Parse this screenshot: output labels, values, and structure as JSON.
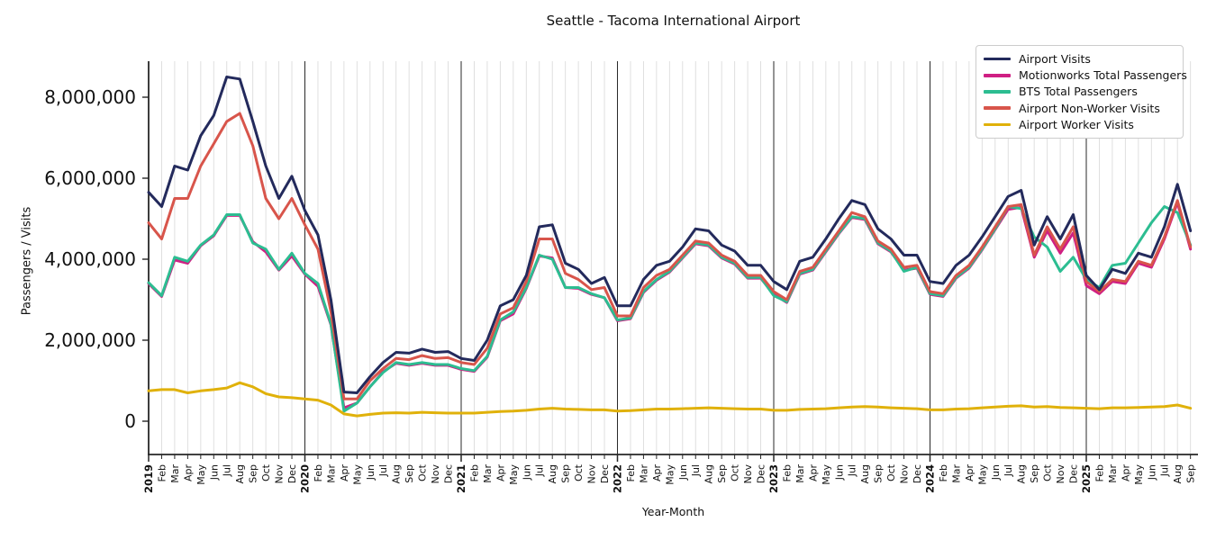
{
  "title": "Seattle - Tacoma International Airport",
  "xlabel": "Year-Month",
  "ylabel": "Passengers / Visits",
  "legend": {
    "items": [
      {
        "label": "Airport Visits"
      },
      {
        "label": "Motionworks Total Passengers"
      },
      {
        "label": "BTS Total Passengers"
      },
      {
        "label": "Airport Non-Worker Visits"
      },
      {
        "label": "Airport Worker Visits"
      }
    ]
  },
  "chart_data": {
    "type": "line",
    "title": "Seattle - Tacoma International Airport",
    "xlabel": "Year-Month",
    "ylabel": "Passengers / Visits",
    "x_start": "2019-01",
    "x_end": "2025-09",
    "n_points": 81,
    "grid": "vertical-monthly",
    "legend_position": "upper right",
    "ylim": [
      -820000,
      9000000
    ],
    "yticks": [
      0,
      2000000,
      4000000,
      6000000,
      8000000
    ],
    "ytick_labels": [
      "0",
      "2,000,000",
      "4,000,000",
      "6,000,000",
      "8,000,000"
    ],
    "year_line_indices": [
      12,
      24,
      36,
      48,
      60,
      72
    ],
    "x_tick_labels": [
      "2019",
      "Feb",
      "Mar",
      "Apr",
      "May",
      "Jun",
      "Jul",
      "Aug",
      "Sep",
      "Oct",
      "Nov",
      "Dec",
      "2020",
      "Feb",
      "Mar",
      "Apr",
      "May",
      "Jun",
      "Jul",
      "Aug",
      "Sep",
      "Oct",
      "Nov",
      "Dec",
      "2021",
      "Feb",
      "Mar",
      "Apr",
      "May",
      "Jun",
      "Jul",
      "Aug",
      "Sep",
      "Oct",
      "Nov",
      "Dec",
      "2022",
      "Feb",
      "Mar",
      "Apr",
      "May",
      "Jun",
      "Jul",
      "Aug",
      "Sep",
      "Oct",
      "Nov",
      "Dec",
      "2023",
      "Feb",
      "Mar",
      "Apr",
      "May",
      "Jun",
      "Jul",
      "Aug",
      "Sep",
      "Oct",
      "Nov",
      "Dec",
      "2024",
      "Feb",
      "Mar",
      "Apr",
      "May",
      "Jun",
      "Jul",
      "Aug",
      "Sep",
      "Oct",
      "Nov",
      "Dec",
      "2025",
      "Feb",
      "Mar",
      "Apr",
      "May",
      "Jun",
      "Jul",
      "Aug",
      "Sep"
    ],
    "series": [
      {
        "name": "Airport Visits",
        "color": "#232a5c",
        "values": [
          5650000,
          5300000,
          6300000,
          6200000,
          7050000,
          7550000,
          8500000,
          8450000,
          7400000,
          6300000,
          5500000,
          6050000,
          5200000,
          4600000,
          3000000,
          720000,
          700000,
          1100000,
          1450000,
          1700000,
          1680000,
          1780000,
          1700000,
          1720000,
          1550000,
          1500000,
          2000000,
          2850000,
          3000000,
          3600000,
          4800000,
          4850000,
          3900000,
          3750000,
          3400000,
          3550000,
          2850000,
          2850000,
          3500000,
          3850000,
          3950000,
          4300000,
          4750000,
          4700000,
          4350000,
          4200000,
          3850000,
          3850000,
          3450000,
          3250000,
          3950000,
          4050000,
          4500000,
          5000000,
          5450000,
          5350000,
          4750000,
          4500000,
          4100000,
          4100000,
          3450000,
          3400000,
          3850000,
          4100000,
          4550000,
          5050000,
          5550000,
          5700000,
          4350000,
          5050000,
          4500000,
          5100000,
          3600000,
          3250000,
          3750000,
          3650000,
          4150000,
          4050000,
          4800000,
          5850000,
          4700000
        ]
      },
      {
        "name": "Motionworks Total Passengers",
        "color": "#cf1f83",
        "values": [
          3400000,
          3080000,
          3980000,
          3900000,
          4330000,
          4580000,
          5080000,
          5080000,
          4430000,
          4180000,
          3730000,
          4080000,
          3630000,
          3330000,
          2380000,
          330000,
          450000,
          850000,
          1220000,
          1430000,
          1380000,
          1430000,
          1380000,
          1380000,
          1280000,
          1230000,
          1580000,
          2480000,
          2650000,
          3280000,
          4080000,
          4030000,
          3300000,
          3280000,
          3130000,
          3050000,
          2480000,
          2530000,
          3180000,
          3480000,
          3680000,
          4030000,
          4380000,
          4330000,
          4030000,
          3880000,
          3530000,
          3530000,
          3130000,
          2930000,
          3630000,
          3730000,
          4180000,
          4630000,
          5030000,
          4980000,
          4380000,
          4180000,
          3730000,
          3780000,
          3130000,
          3080000,
          3530000,
          3780000,
          4230000,
          4730000,
          5230000,
          5280000,
          4050000,
          4700000,
          4150000,
          4650000,
          3350000,
          3150000,
          3450000,
          3400000,
          3900000,
          3800000,
          4500000,
          5400000,
          4250000
        ]
      },
      {
        "name": "BTS Total Passengers",
        "color": "#2cbd91",
        "values": [
          3420000,
          3100000,
          4050000,
          3950000,
          4350000,
          4600000,
          5100000,
          5100000,
          4400000,
          4250000,
          3750000,
          4150000,
          3650000,
          3400000,
          2400000,
          250000,
          450000,
          850000,
          1200000,
          1450000,
          1400000,
          1450000,
          1400000,
          1400000,
          1300000,
          1250000,
          1600000,
          2500000,
          2700000,
          3300000,
          4100000,
          4000000,
          3300000,
          3300000,
          3150000,
          3050000,
          2500000,
          2550000,
          3200000,
          3500000,
          3700000,
          4050000,
          4400000,
          4350000,
          4050000,
          3900000,
          3550000,
          3550000,
          3100000,
          2950000,
          3650000,
          3750000,
          4200000,
          4650000,
          5050000,
          5000000,
          4400000,
          4200000,
          3700000,
          3800000,
          3150000,
          3100000,
          3550000,
          3800000,
          4250000,
          4750000,
          5300000,
          5250000,
          4550000,
          4300000,
          3700000,
          4050000,
          3500000,
          3300000,
          3850000,
          3900000,
          4400000,
          4900000,
          5300000,
          5150000,
          4350000
        ]
      },
      {
        "name": "Airport Non-Worker Visits",
        "color": "#d8554b",
        "values": [
          4900000,
          4500000,
          5500000,
          5500000,
          6300000,
          6850000,
          7400000,
          7600000,
          6800000,
          5500000,
          5000000,
          5500000,
          4850000,
          4250000,
          2700000,
          550000,
          550000,
          1000000,
          1300000,
          1550000,
          1520000,
          1620000,
          1550000,
          1570000,
          1450000,
          1400000,
          1800000,
          2650000,
          2800000,
          3450000,
          4500000,
          4500000,
          3650000,
          3500000,
          3250000,
          3300000,
          2600000,
          2600000,
          3300000,
          3600000,
          3750000,
          4100000,
          4450000,
          4400000,
          4100000,
          3950000,
          3600000,
          3600000,
          3200000,
          3000000,
          3700000,
          3800000,
          4250000,
          4700000,
          5150000,
          5050000,
          4450000,
          4250000,
          3800000,
          3850000,
          3200000,
          3150000,
          3600000,
          3850000,
          4300000,
          4800000,
          5300000,
          5350000,
          4100000,
          4800000,
          4250000,
          4800000,
          3450000,
          3200000,
          3500000,
          3450000,
          3950000,
          3850000,
          4550000,
          5450000,
          4300000
        ]
      },
      {
        "name": "Airport Worker Visits",
        "color": "#e0b10a",
        "values": [
          750000,
          780000,
          780000,
          700000,
          750000,
          780000,
          820000,
          950000,
          850000,
          680000,
          600000,
          580000,
          550000,
          520000,
          400000,
          180000,
          130000,
          170000,
          200000,
          210000,
          200000,
          220000,
          210000,
          200000,
          200000,
          200000,
          220000,
          240000,
          250000,
          270000,
          300000,
          320000,
          300000,
          290000,
          280000,
          280000,
          250000,
          260000,
          280000,
          300000,
          300000,
          310000,
          320000,
          330000,
          320000,
          310000,
          300000,
          300000,
          270000,
          270000,
          290000,
          300000,
          310000,
          330000,
          350000,
          360000,
          350000,
          330000,
          320000,
          310000,
          280000,
          280000,
          300000,
          310000,
          330000,
          350000,
          370000,
          380000,
          350000,
          360000,
          340000,
          330000,
          320000,
          310000,
          330000,
          330000,
          340000,
          350000,
          360000,
          400000,
          320000
        ]
      }
    ]
  },
  "style": {
    "grid_color": "#dcdcdc",
    "year_line_color": "#2a2a2a",
    "spine_color": "#262626",
    "line_width": 3
  }
}
